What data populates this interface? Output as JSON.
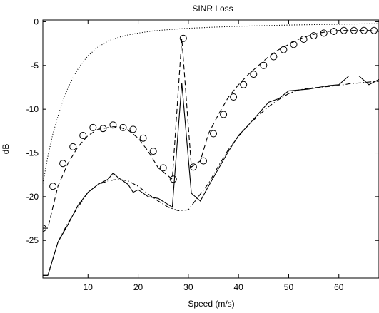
{
  "chart_data": {
    "type": "line",
    "title": "SINR Loss",
    "xlabel": "Speed (m/s)",
    "ylabel": "dB",
    "xlim": [
      1,
      68
    ],
    "ylim": [
      -29.3,
      0.2
    ],
    "xticks": [
      10,
      20,
      30,
      40,
      50,
      60
    ],
    "yticks": [
      0,
      -5,
      -10,
      -15,
      -20,
      -25
    ],
    "grid": false,
    "legend": "none",
    "series": [
      {
        "style": "solid",
        "color": "#000000",
        "x": [
          1,
          2,
          4,
          6,
          8,
          10,
          12,
          14,
          15,
          16,
          18,
          19,
          20,
          22,
          24,
          26.8,
          28.7,
          30.6,
          32.4,
          34,
          36,
          38,
          40,
          42,
          44,
          46,
          48,
          50,
          52,
          54,
          56,
          58,
          60,
          62,
          64,
          66,
          68
        ],
        "y": [
          -29.0,
          -29.0,
          -25.2,
          -23.2,
          -21.0,
          -19.5,
          -18.6,
          -18.0,
          -17.3,
          -17.8,
          -18.6,
          -19.5,
          -19.2,
          -20.0,
          -20.2,
          -21.2,
          -7.0,
          -19.6,
          -20.5,
          -18.8,
          -16.8,
          -14.8,
          -13.0,
          -11.8,
          -10.5,
          -9.2,
          -8.8,
          -7.9,
          -7.8,
          -7.7,
          -7.5,
          -7.3,
          -7.2,
          -6.2,
          -6.2,
          -7.2,
          -6.6
        ]
      },
      {
        "style": "dashed",
        "color": "#000000",
        "x": [
          1,
          2,
          4,
          6,
          8,
          10,
          12,
          14,
          15,
          16,
          18,
          20,
          22,
          24,
          26.8,
          28.7,
          30.6,
          32.4,
          34,
          36,
          38,
          40,
          42,
          44,
          46,
          48,
          50,
          52,
          54,
          56,
          58,
          60,
          62,
          64,
          66,
          68
        ],
        "y": [
          -23.6,
          -23.6,
          -18.8,
          -16.2,
          -14.3,
          -13.0,
          -12.3,
          -12.1,
          -12.0,
          -12.0,
          -12.4,
          -13.3,
          -14.8,
          -16.7,
          -18.0,
          -1.9,
          -16.6,
          -15.9,
          -12.8,
          -10.6,
          -8.6,
          -7.2,
          -6.0,
          -5.0,
          -4.0,
          -3.2,
          -2.6,
          -2.0,
          -1.6,
          -1.3,
          -1.1,
          -1.0,
          -1.0,
          -1.0,
          -1.0,
          -1.1
        ]
      },
      {
        "style": "dashdot",
        "color": "#000000",
        "x": [
          1,
          2,
          4,
          6,
          8,
          10,
          12,
          14,
          16,
          18,
          20,
          22,
          24,
          26,
          28,
          30,
          32,
          34,
          36,
          38,
          40,
          42,
          44,
          46,
          48,
          50,
          52,
          54,
          56,
          58,
          60,
          62,
          64,
          66,
          68
        ],
        "y": [
          -29.0,
          -29.0,
          -25.2,
          -23.0,
          -21.2,
          -19.5,
          -18.6,
          -18.2,
          -18.0,
          -18.2,
          -18.8,
          -19.7,
          -20.5,
          -21.2,
          -21.6,
          -21.5,
          -20.0,
          -18.5,
          -16.5,
          -14.6,
          -13.1,
          -11.8,
          -10.7,
          -9.7,
          -8.9,
          -8.2,
          -7.8,
          -7.6,
          -7.5,
          -7.4,
          -7.3,
          -7.1,
          -7.0,
          -6.9,
          -6.8
        ]
      },
      {
        "style": "dotted",
        "color": "#000000",
        "x": [
          1,
          2,
          3,
          4,
          5,
          6,
          7,
          8,
          9,
          10,
          12,
          14,
          16,
          18,
          20,
          23,
          26,
          29,
          32,
          36,
          40,
          45,
          50,
          55,
          60,
          65,
          68
        ],
        "y": [
          -18.5,
          -15.4,
          -12.8,
          -10.8,
          -9.0,
          -7.6,
          -6.4,
          -5.4,
          -4.6,
          -3.9,
          -2.9,
          -2.2,
          -1.8,
          -1.5,
          -1.3,
          -1.05,
          -0.9,
          -0.78,
          -0.7,
          -0.6,
          -0.52,
          -0.45,
          -0.38,
          -0.33,
          -0.28,
          -0.24,
          -0.22
        ]
      }
    ],
    "markers": {
      "series_index": 1,
      "symbol": "circle",
      "x": [
        1,
        3,
        5,
        7,
        9,
        11,
        13,
        15,
        17,
        19,
        21,
        23,
        25,
        27,
        29,
        31,
        33,
        35,
        37,
        39,
        41,
        43,
        45,
        47,
        49,
        51,
        53,
        55,
        57,
        59,
        61,
        63,
        65,
        67,
        69
      ],
      "y": [
        -23.6,
        -18.8,
        -16.2,
        -14.3,
        -13.0,
        -12.1,
        -12.2,
        -11.8,
        -12.1,
        -12.3,
        -13.3,
        -14.8,
        -16.7,
        -18.0,
        -1.9,
        -16.6,
        -15.9,
        -12.8,
        -10.6,
        -8.6,
        -7.2,
        -6.0,
        -5.0,
        -4.0,
        -3.2,
        -2.6,
        -2.0,
        -1.6,
        -1.3,
        -1.1,
        -1.0,
        -1.0,
        -1.0,
        -1.0,
        -1.1
      ]
    }
  }
}
